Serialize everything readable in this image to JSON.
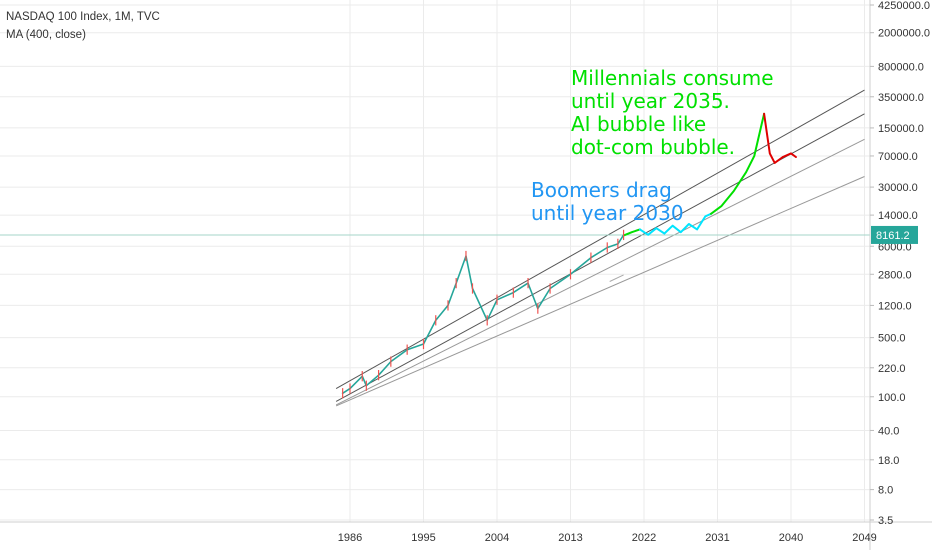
{
  "chart_data": {
    "type": "line",
    "title": "NASDAQ 100 Index, 1M, TVC",
    "indicator": "MA (400, close)",
    "scale": "log",
    "y_ticks": [
      "4250000.0",
      "2000000.0",
      "800000.0",
      "350000.0",
      "150000.0",
      "70000.0",
      "30000.0",
      "14000.0",
      "6000.0",
      "2800.0",
      "1200.0",
      "500.0",
      "220.0",
      "100.0",
      "40.0",
      "18.0",
      "8.0",
      "3.5"
    ],
    "x_ticks": [
      "1986",
      "1995",
      "2004",
      "2013",
      "2022",
      "2031",
      "2040",
      "2049"
    ],
    "last_price_label": "8161.2",
    "ylim": [
      3.5,
      4250000
    ],
    "xlim": [
      1983,
      2050
    ],
    "series": [
      {
        "values": [
          [
            1985.1,
            110
          ],
          [
            1986.0,
            125
          ],
          [
            1987.5,
            175
          ],
          [
            1988.0,
            135
          ],
          [
            1989.5,
            180
          ],
          [
            1991.0,
            260
          ],
          [
            1993.0,
            360
          ],
          [
            1995.0,
            420
          ],
          [
            1996.5,
            800
          ],
          [
            1998.0,
            1200
          ],
          [
            1999.0,
            2200
          ],
          [
            2000.2,
            4600
          ],
          [
            2001.0,
            1900
          ],
          [
            2002.8,
            800
          ],
          [
            2004.0,
            1400
          ],
          [
            2006.0,
            1700
          ],
          [
            2007.8,
            2200
          ],
          [
            2009.0,
            1100
          ],
          [
            2010.5,
            1900
          ],
          [
            2013.0,
            2800
          ],
          [
            2015.5,
            4400
          ],
          [
            2017.5,
            5800
          ],
          [
            2018.8,
            6400
          ],
          [
            2019.5,
            8161
          ]
        ],
        "color": "#26a69a"
      },
      {
        "values": [
          [
            2019.6,
            8100
          ],
          [
            2020.5,
            8800
          ],
          [
            2021.5,
            9500
          ]
        ],
        "color": "#00e000"
      },
      {
        "values": [
          [
            2021.5,
            9500
          ],
          [
            2022.5,
            8200
          ],
          [
            2023.5,
            9800
          ],
          [
            2024.5,
            8500
          ],
          [
            2025.5,
            10500
          ],
          [
            2026.5,
            8800
          ],
          [
            2027.5,
            11000
          ],
          [
            2028.5,
            9500
          ],
          [
            2029.5,
            13500
          ],
          [
            2030.2,
            14500
          ]
        ],
        "color": "#00e5ff"
      },
      {
        "values": [
          [
            2030.2,
            14500
          ],
          [
            2031.5,
            18000
          ],
          [
            2033.0,
            27000
          ],
          [
            2034.5,
            45000
          ],
          [
            2035.5,
            70000
          ],
          [
            2036.3,
            150000
          ],
          [
            2036.7,
            220000
          ]
        ],
        "color": "#00e000"
      },
      {
        "values": [
          [
            2036.7,
            220000
          ],
          [
            2037.4,
            75000
          ],
          [
            2038.0,
            58000
          ],
          [
            2039.0,
            68000
          ],
          [
            2040.0,
            75000
          ],
          [
            2040.6,
            68000
          ]
        ],
        "color": "#e00000"
      }
    ],
    "trendlines": [
      {
        "from": [
          1984.3,
          125
        ],
        "to": [
          2049.0,
          420000
        ],
        "color": "#555555"
      },
      {
        "from": [
          1984.3,
          88
        ],
        "to": [
          2049.0,
          220000
        ],
        "color": "#555555"
      },
      {
        "from": [
          1984.3,
          80
        ],
        "to": [
          2049.0,
          110000
        ],
        "color": "#999999"
      },
      {
        "from": [
          1984.3,
          78
        ],
        "to": [
          2049.0,
          40000
        ],
        "color": "#999999"
      },
      {
        "from": [
          2017.8,
          2300
        ],
        "to": [
          2019.5,
          2750
        ],
        "color": "#aaaaaa"
      }
    ],
    "annotations": [
      {
        "lines": [
          "Millennials consume",
          "until year 2035.",
          "AI bubble like",
          "dot-com bubble."
        ],
        "color": "#00e000"
      },
      {
        "lines": [
          "Boomers drag",
          "until year 2030"
        ],
        "color": "#2196f3"
      }
    ],
    "price_line_value": 8161.2,
    "colors": {
      "price_line": "#26a69a",
      "axis_text": "#333333",
      "grid": "#ebebeb"
    }
  }
}
